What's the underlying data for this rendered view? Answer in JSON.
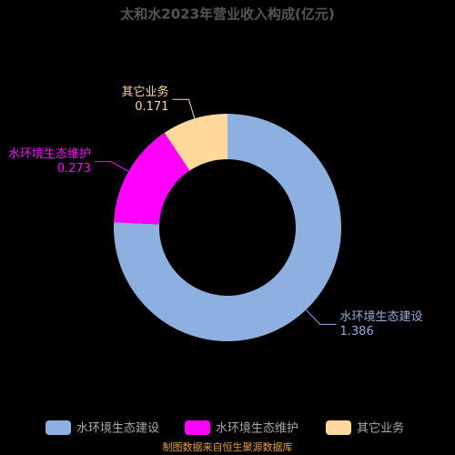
{
  "chart_data": {
    "type": "donut",
    "title": "太和水2023年营业收入构成(亿元)",
    "categories": [
      "水环境生态建设",
      "水环境生态维护",
      "其它业务"
    ],
    "values": [
      1.386,
      0.273,
      0.171
    ],
    "colors": [
      "#8eb0e0",
      "#ff00ff",
      "#ffd99c"
    ],
    "legend": "bottom",
    "source": "制图数据来自恒生聚源数据库"
  }
}
